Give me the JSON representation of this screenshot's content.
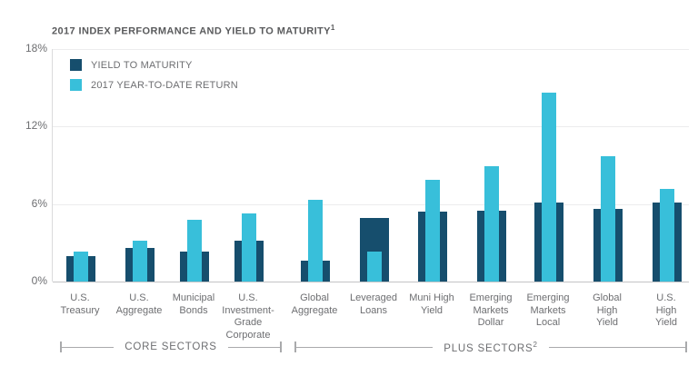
{
  "title": {
    "text": "2017 INDEX PERFORMANCE AND YIELD TO MATURITY",
    "superscript": "1"
  },
  "colors": {
    "navy": "#164E6D",
    "cyan": "#38BFDA",
    "grid": "#ECECED",
    "baseline": "#C3C4C6",
    "axis_text": "#6D6E71",
    "title_text": "#595A5C"
  },
  "legend": {
    "items": [
      {
        "label": "YIELD TO MATURITY",
        "color_key": "navy"
      },
      {
        "label": "2017 YEAR-TO-DATE RETURN",
        "color_key": "cyan"
      }
    ]
  },
  "chart_data": {
    "type": "bar",
    "title": "2017 INDEX PERFORMANCE AND YIELD TO MATURITY",
    "categories": [
      "U.S. Treasury",
      "U.S. Aggregate",
      "Municipal Bonds",
      "U.S. Investment-Grade Corporate",
      "Global Aggregate",
      "Leveraged Loans",
      "Muni High Yield",
      "Emerging Markets Dollar",
      "Emerging Markets Local",
      "Global High Yield",
      "U.S. High Yield"
    ],
    "category_label_lines": [
      [
        "U.S.",
        "Treasury"
      ],
      [
        "U.S.",
        "Aggregate"
      ],
      [
        "Municipal",
        "Bonds"
      ],
      [
        "U.S.",
        "Investment-",
        "Grade",
        "Corporate"
      ],
      [
        "Global",
        "Aggregate"
      ],
      [
        "Leveraged",
        "Loans"
      ],
      [
        "Muni High",
        "Yield"
      ],
      [
        "Emerging",
        "Markets",
        "Dollar"
      ],
      [
        "Emerging",
        "Markets",
        "Local"
      ],
      [
        "Global",
        "High",
        "Yield"
      ],
      [
        "U.S.",
        "High",
        "Yield"
      ]
    ],
    "series": [
      {
        "name": "YIELD TO MATURITY",
        "color_key": "navy",
        "values": [
          2.0,
          2.6,
          2.3,
          3.2,
          1.6,
          4.9,
          5.4,
          5.5,
          6.1,
          5.6,
          6.1
        ]
      },
      {
        "name": "2017 YEAR-TO-DATE RETURN",
        "color_key": "cyan",
        "values": [
          2.3,
          3.2,
          4.8,
          5.3,
          6.3,
          2.3,
          7.9,
          8.9,
          14.6,
          9.7,
          7.2
        ]
      }
    ],
    "ylabel": "",
    "xlabel": "",
    "ylim": [
      0,
      18
    ],
    "yticks": [
      {
        "label": "18%",
        "value": 18
      },
      {
        "label": "12%",
        "value": 12
      },
      {
        "label": "6%",
        "value": 6
      },
      {
        "label": "0%",
        "value": 0
      }
    ],
    "grid": "horizontal",
    "legend_position": "top-left-inside"
  },
  "sector_brackets": [
    {
      "label": "CORE SECTORS",
      "sup": "",
      "category_span": [
        0,
        3
      ]
    },
    {
      "label": "PLUS SECTORS",
      "sup": "2",
      "category_span": [
        4,
        10
      ]
    }
  ]
}
